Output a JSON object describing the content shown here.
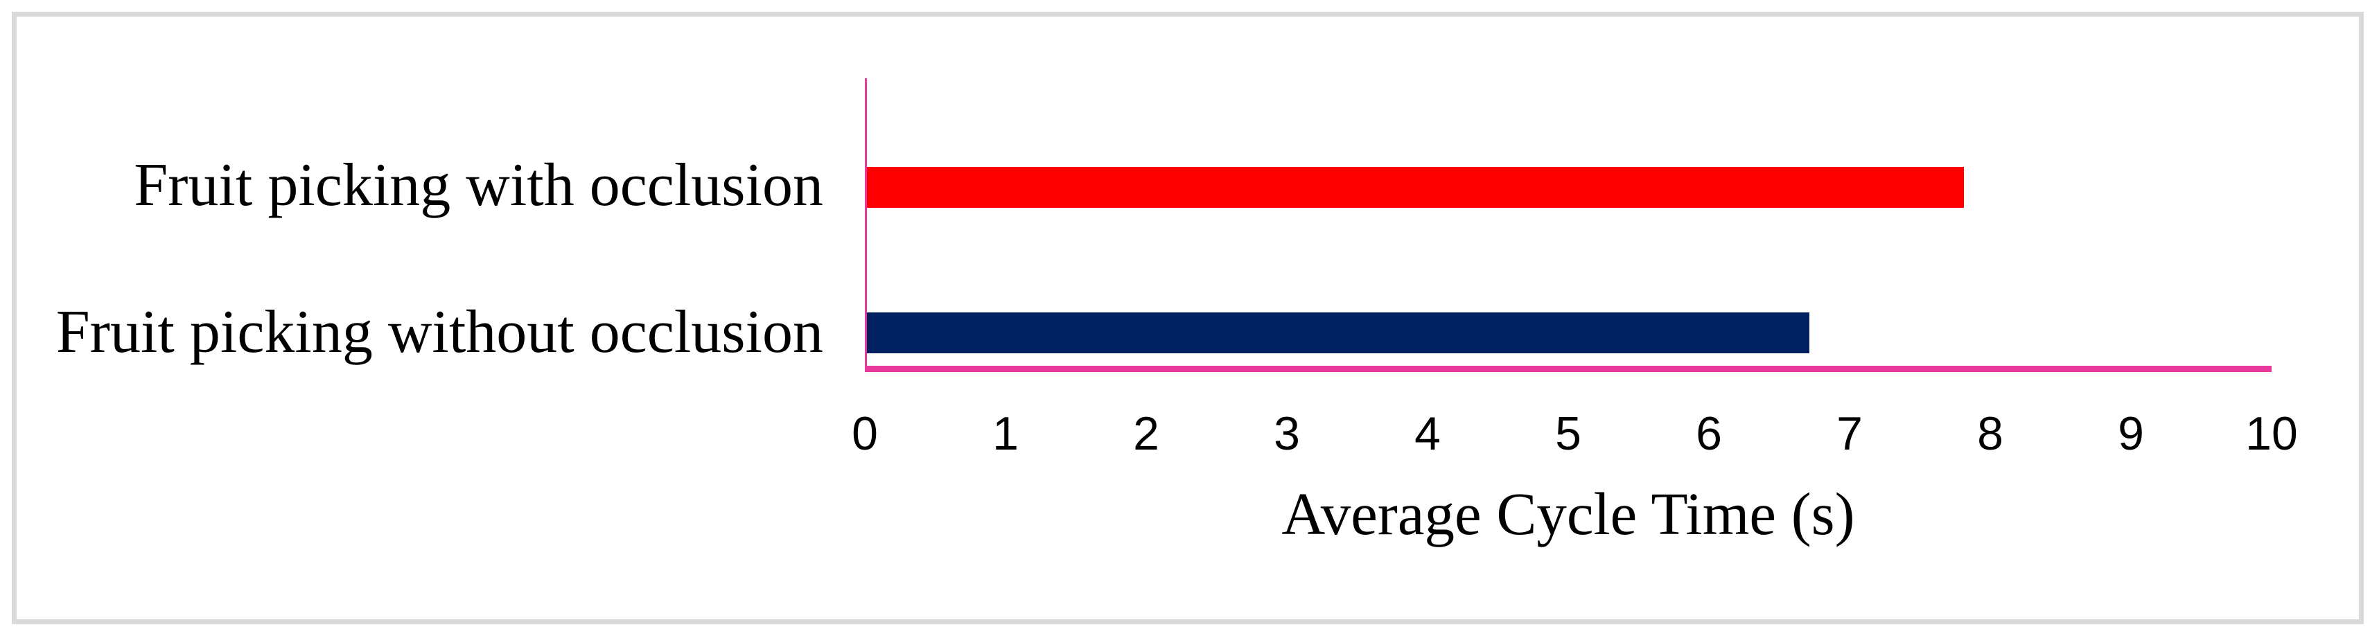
{
  "figure": {
    "background": "#ffffff",
    "frame_border_color": "#d9d9d9"
  },
  "chart_data": {
    "type": "bar",
    "orientation": "horizontal",
    "title": "",
    "xlabel": "Average Cycle Time (s)",
    "ylabel": "",
    "categories": [
      "Fruit picking with occlusion",
      "Fruit picking without occlusion"
    ],
    "values": [
      7.8,
      6.7
    ],
    "bar_colors": [
      "#ff0000",
      "#002060"
    ],
    "xlim": [
      0,
      10
    ],
    "x_ticks": [
      "0",
      "1",
      "2",
      "3",
      "4",
      "5",
      "6",
      "7",
      "8",
      "9",
      "10"
    ],
    "axis_color": "#e6399b",
    "grid": false,
    "legend": false
  }
}
